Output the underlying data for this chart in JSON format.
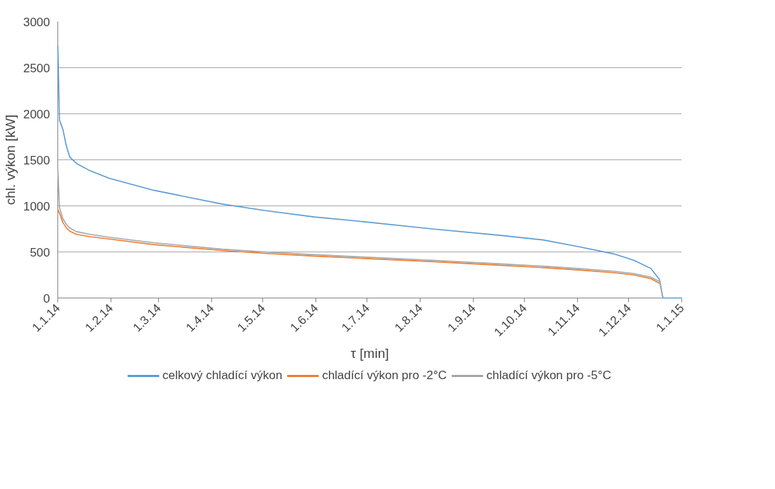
{
  "chart_data": {
    "type": "line",
    "xlabel": "τ [min]",
    "ylabel": "chl. výkon [kW]",
    "x": [
      "2014-01-01",
      "2014-01-02",
      "2014-01-04",
      "2014-01-06",
      "2014-01-08",
      "2014-01-12",
      "2014-01-20",
      "2014-01-31",
      "2014-02-26",
      "2014-04-07",
      "2014-05-02",
      "2014-05-31",
      "2014-06-28",
      "2014-08-08",
      "2014-09-17",
      "2014-10-12",
      "2014-11-01",
      "2014-11-22",
      "2014-12-04",
      "2014-12-14",
      "2014-12-19",
      "2014-12-21",
      "2015-01-01"
    ],
    "series": [
      {
        "name": "celkový chladící výkon",
        "color": "#5b9bd5",
        "values": [
          2740,
          1930,
          1830,
          1650,
          1530,
          1460,
          1380,
          1300,
          1170,
          1020,
          950,
          880,
          830,
          750,
          680,
          630,
          560,
          480,
          410,
          320,
          200,
          0,
          0
        ]
      },
      {
        "name": "chladící výkon pro -2°C",
        "color": "#ed7d31",
        "values": [
          960,
          920,
          820,
          760,
          725,
          690,
          665,
          640,
          580,
          515,
          485,
          455,
          430,
          395,
          355,
          330,
          305,
          275,
          250,
          210,
          160,
          null,
          null
        ]
      },
      {
        "name": "chladící výkon pro -5°C",
        "color": "#a5a5a5",
        "values": [
          1400,
          980,
          860,
          800,
          760,
          720,
          690,
          660,
          600,
          530,
          500,
          470,
          445,
          410,
          370,
          345,
          320,
          290,
          265,
          225,
          180,
          0,
          null
        ]
      }
    ],
    "xlim": [
      "2014-01-01",
      "2015-01-01"
    ],
    "xticks": [
      {
        "value": "2014-01-01",
        "label": "1.1.14"
      },
      {
        "value": "2014-02-01",
        "label": "1.2.14"
      },
      {
        "value": "2014-03-01",
        "label": "1.3.14"
      },
      {
        "value": "2014-04-01",
        "label": "1.4.14"
      },
      {
        "value": "2014-05-01",
        "label": "1.5.14"
      },
      {
        "value": "2014-06-01",
        "label": "1.6.14"
      },
      {
        "value": "2014-07-01",
        "label": "1.7.14"
      },
      {
        "value": "2014-08-01",
        "label": "1.8.14"
      },
      {
        "value": "2014-09-01",
        "label": "1.9.14"
      },
      {
        "value": "2014-10-01",
        "label": "1.10.14"
      },
      {
        "value": "2014-11-01",
        "label": "1.11.14"
      },
      {
        "value": "2014-12-01",
        "label": "1.12.14"
      },
      {
        "value": "2015-01-01",
        "label": "1.1.15"
      }
    ],
    "ylim": [
      0,
      3000
    ],
    "yticks": [
      0,
      500,
      1000,
      1500,
      2000,
      2500,
      3000
    ],
    "grid": "y",
    "legend": "bottom",
    "marker": "none",
    "line_style": "solid"
  }
}
